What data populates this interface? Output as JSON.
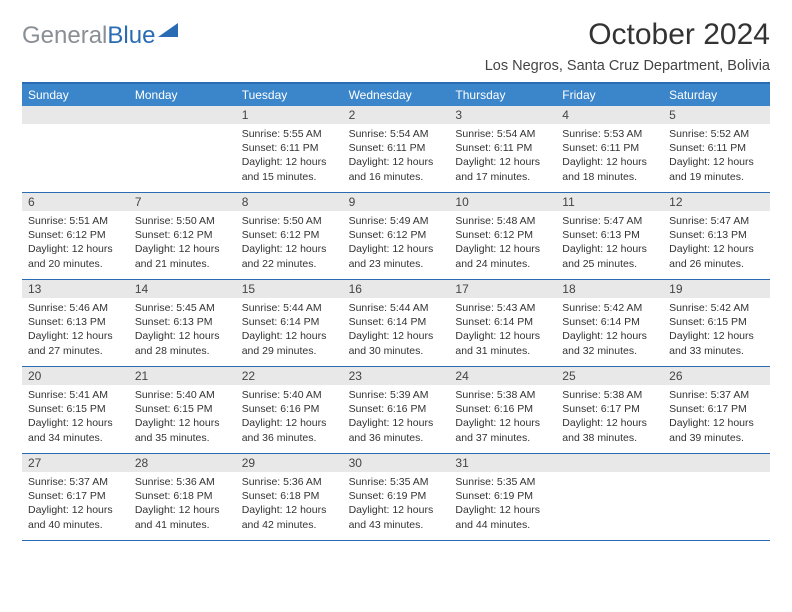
{
  "logo": {
    "gray": "General",
    "blue": "Blue"
  },
  "title": "October 2024",
  "location": "Los Negros, Santa Cruz Department, Bolivia",
  "colors": {
    "header_bg": "#3b86ca",
    "border": "#2a6cb3",
    "daynum_bg": "#e8e8e8",
    "text": "#333333",
    "logo_gray": "#8a8f94",
    "logo_blue": "#2a6cb3"
  },
  "day_names": [
    "Sunday",
    "Monday",
    "Tuesday",
    "Wednesday",
    "Thursday",
    "Friday",
    "Saturday"
  ],
  "weeks": [
    [
      {
        "n": "",
        "sr": "",
        "ss": "",
        "dl": ""
      },
      {
        "n": "",
        "sr": "",
        "ss": "",
        "dl": ""
      },
      {
        "n": "1",
        "sr": "Sunrise: 5:55 AM",
        "ss": "Sunset: 6:11 PM",
        "dl": "Daylight: 12 hours and 15 minutes."
      },
      {
        "n": "2",
        "sr": "Sunrise: 5:54 AM",
        "ss": "Sunset: 6:11 PM",
        "dl": "Daylight: 12 hours and 16 minutes."
      },
      {
        "n": "3",
        "sr": "Sunrise: 5:54 AM",
        "ss": "Sunset: 6:11 PM",
        "dl": "Daylight: 12 hours and 17 minutes."
      },
      {
        "n": "4",
        "sr": "Sunrise: 5:53 AM",
        "ss": "Sunset: 6:11 PM",
        "dl": "Daylight: 12 hours and 18 minutes."
      },
      {
        "n": "5",
        "sr": "Sunrise: 5:52 AM",
        "ss": "Sunset: 6:11 PM",
        "dl": "Daylight: 12 hours and 19 minutes."
      }
    ],
    [
      {
        "n": "6",
        "sr": "Sunrise: 5:51 AM",
        "ss": "Sunset: 6:12 PM",
        "dl": "Daylight: 12 hours and 20 minutes."
      },
      {
        "n": "7",
        "sr": "Sunrise: 5:50 AM",
        "ss": "Sunset: 6:12 PM",
        "dl": "Daylight: 12 hours and 21 minutes."
      },
      {
        "n": "8",
        "sr": "Sunrise: 5:50 AM",
        "ss": "Sunset: 6:12 PM",
        "dl": "Daylight: 12 hours and 22 minutes."
      },
      {
        "n": "9",
        "sr": "Sunrise: 5:49 AM",
        "ss": "Sunset: 6:12 PM",
        "dl": "Daylight: 12 hours and 23 minutes."
      },
      {
        "n": "10",
        "sr": "Sunrise: 5:48 AM",
        "ss": "Sunset: 6:12 PM",
        "dl": "Daylight: 12 hours and 24 minutes."
      },
      {
        "n": "11",
        "sr": "Sunrise: 5:47 AM",
        "ss": "Sunset: 6:13 PM",
        "dl": "Daylight: 12 hours and 25 minutes."
      },
      {
        "n": "12",
        "sr": "Sunrise: 5:47 AM",
        "ss": "Sunset: 6:13 PM",
        "dl": "Daylight: 12 hours and 26 minutes."
      }
    ],
    [
      {
        "n": "13",
        "sr": "Sunrise: 5:46 AM",
        "ss": "Sunset: 6:13 PM",
        "dl": "Daylight: 12 hours and 27 minutes."
      },
      {
        "n": "14",
        "sr": "Sunrise: 5:45 AM",
        "ss": "Sunset: 6:13 PM",
        "dl": "Daylight: 12 hours and 28 minutes."
      },
      {
        "n": "15",
        "sr": "Sunrise: 5:44 AM",
        "ss": "Sunset: 6:14 PM",
        "dl": "Daylight: 12 hours and 29 minutes."
      },
      {
        "n": "16",
        "sr": "Sunrise: 5:44 AM",
        "ss": "Sunset: 6:14 PM",
        "dl": "Daylight: 12 hours and 30 minutes."
      },
      {
        "n": "17",
        "sr": "Sunrise: 5:43 AM",
        "ss": "Sunset: 6:14 PM",
        "dl": "Daylight: 12 hours and 31 minutes."
      },
      {
        "n": "18",
        "sr": "Sunrise: 5:42 AM",
        "ss": "Sunset: 6:14 PM",
        "dl": "Daylight: 12 hours and 32 minutes."
      },
      {
        "n": "19",
        "sr": "Sunrise: 5:42 AM",
        "ss": "Sunset: 6:15 PM",
        "dl": "Daylight: 12 hours and 33 minutes."
      }
    ],
    [
      {
        "n": "20",
        "sr": "Sunrise: 5:41 AM",
        "ss": "Sunset: 6:15 PM",
        "dl": "Daylight: 12 hours and 34 minutes."
      },
      {
        "n": "21",
        "sr": "Sunrise: 5:40 AM",
        "ss": "Sunset: 6:15 PM",
        "dl": "Daylight: 12 hours and 35 minutes."
      },
      {
        "n": "22",
        "sr": "Sunrise: 5:40 AM",
        "ss": "Sunset: 6:16 PM",
        "dl": "Daylight: 12 hours and 36 minutes."
      },
      {
        "n": "23",
        "sr": "Sunrise: 5:39 AM",
        "ss": "Sunset: 6:16 PM",
        "dl": "Daylight: 12 hours and 36 minutes."
      },
      {
        "n": "24",
        "sr": "Sunrise: 5:38 AM",
        "ss": "Sunset: 6:16 PM",
        "dl": "Daylight: 12 hours and 37 minutes."
      },
      {
        "n": "25",
        "sr": "Sunrise: 5:38 AM",
        "ss": "Sunset: 6:17 PM",
        "dl": "Daylight: 12 hours and 38 minutes."
      },
      {
        "n": "26",
        "sr": "Sunrise: 5:37 AM",
        "ss": "Sunset: 6:17 PM",
        "dl": "Daylight: 12 hours and 39 minutes."
      }
    ],
    [
      {
        "n": "27",
        "sr": "Sunrise: 5:37 AM",
        "ss": "Sunset: 6:17 PM",
        "dl": "Daylight: 12 hours and 40 minutes."
      },
      {
        "n": "28",
        "sr": "Sunrise: 5:36 AM",
        "ss": "Sunset: 6:18 PM",
        "dl": "Daylight: 12 hours and 41 minutes."
      },
      {
        "n": "29",
        "sr": "Sunrise: 5:36 AM",
        "ss": "Sunset: 6:18 PM",
        "dl": "Daylight: 12 hours and 42 minutes."
      },
      {
        "n": "30",
        "sr": "Sunrise: 5:35 AM",
        "ss": "Sunset: 6:19 PM",
        "dl": "Daylight: 12 hours and 43 minutes."
      },
      {
        "n": "31",
        "sr": "Sunrise: 5:35 AM",
        "ss": "Sunset: 6:19 PM",
        "dl": "Daylight: 12 hours and 44 minutes."
      },
      {
        "n": "",
        "sr": "",
        "ss": "",
        "dl": ""
      },
      {
        "n": "",
        "sr": "",
        "ss": "",
        "dl": ""
      }
    ]
  ]
}
